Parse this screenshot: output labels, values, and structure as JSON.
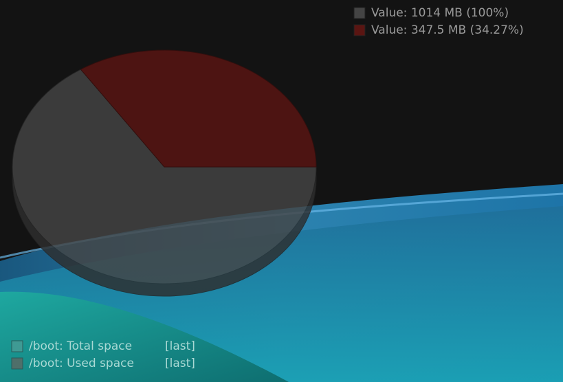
{
  "chart_data": {
    "type": "pie",
    "categories": [
      "/boot: Total space",
      "/boot: Used space"
    ],
    "functions": [
      "[last]",
      "[last]"
    ],
    "values": [
      1014,
      347.5
    ],
    "value_labels": [
      "Value: 1014 MB (100%)",
      "Value: 347.5 MB (34.27%)"
    ],
    "colors": [
      "#444444",
      "#5a1512"
    ],
    "legend_colors": [
      "#3f9a94",
      "#4f6f6a"
    ]
  }
}
